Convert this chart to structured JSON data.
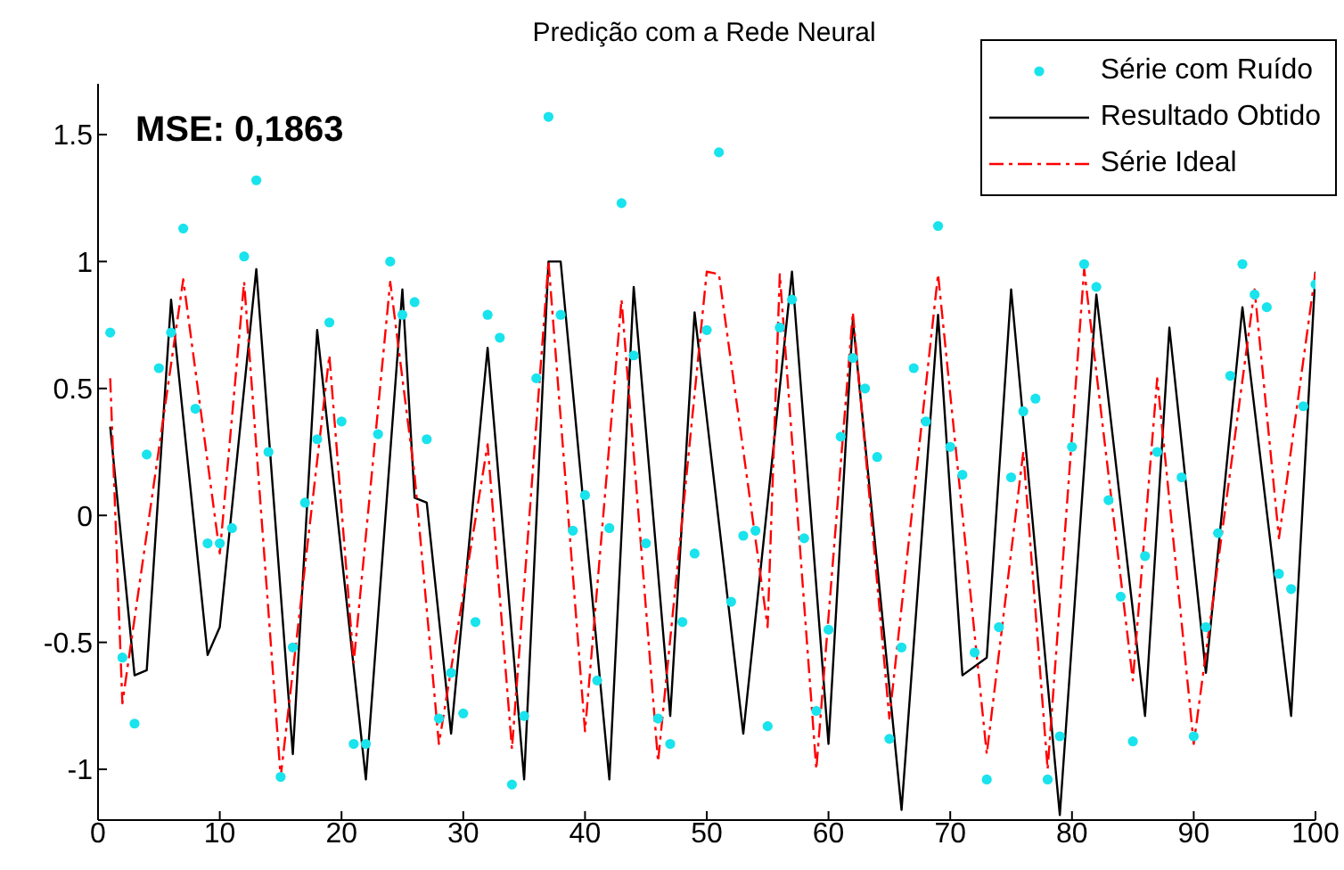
{
  "chart_data": {
    "type": "line",
    "title": "Predição com a Rede Neural",
    "annotations": [
      "MSE: 0,1863"
    ],
    "xlim": [
      0,
      100
    ],
    "xticks": [
      0,
      10,
      20,
      30,
      40,
      50,
      60,
      70,
      80,
      90,
      100
    ],
    "ylim": [
      -1.2,
      1.7
    ],
    "yticks": [
      -1,
      -0.5,
      0,
      0.5,
      1,
      1.5
    ],
    "grid": false,
    "legend": "top right",
    "series": [
      {
        "name": "Série com Ruído",
        "type": "scatter",
        "marker": "circle",
        "color": "#19e3ec",
        "x": [
          1,
          2,
          3,
          4,
          5,
          6,
          7,
          8,
          9,
          10,
          11,
          12,
          13,
          14,
          15,
          16,
          17,
          18,
          19,
          20,
          21,
          22,
          23,
          24,
          25,
          26,
          27,
          28,
          29,
          30,
          31,
          32,
          33,
          34,
          35,
          36,
          37,
          38,
          39,
          40,
          41,
          42,
          43,
          44,
          45,
          46,
          47,
          48,
          49,
          50,
          51,
          52,
          53,
          54,
          55,
          56,
          57,
          58,
          59,
          60,
          61,
          62,
          63,
          64,
          65,
          66,
          67,
          68,
          69,
          70,
          71,
          72,
          73,
          74,
          75,
          76,
          77,
          78,
          79,
          80,
          81,
          82,
          83,
          84,
          85,
          86,
          87,
          89,
          90,
          91,
          92,
          93,
          94,
          95,
          96,
          97,
          98,
          99,
          100
        ],
        "values": [
          0.72,
          -0.56,
          -0.82,
          0.24,
          0.58,
          0.72,
          1.13,
          0.42,
          -0.11,
          -0.11,
          -0.05,
          1.02,
          1.32,
          0.25,
          -1.03,
          -0.52,
          0.05,
          0.3,
          0.76,
          0.37,
          -0.9,
          -0.9,
          0.32,
          1.0,
          0.79,
          0.84,
          0.3,
          -0.8,
          -0.62,
          -0.78,
          -0.42,
          0.79,
          0.7,
          -1.06,
          -0.79,
          0.54,
          1.57,
          0.79,
          -0.06,
          0.08,
          -0.65,
          -0.05,
          1.23,
          0.63,
          -0.11,
          -0.8,
          -0.9,
          -0.42,
          -0.15,
          0.73,
          1.43,
          -0.34,
          -0.08,
          -0.06,
          -0.83,
          0.74,
          0.85,
          -0.09,
          -0.77,
          -0.45,
          0.31,
          0.62,
          0.5,
          0.23,
          -0.88,
          -0.52,
          0.58,
          0.37,
          1.14,
          0.27,
          0.16,
          -0.54,
          -1.04,
          -0.44,
          0.15,
          0.41,
          0.46,
          -1.04,
          -0.87,
          0.27,
          0.99,
          0.9,
          0.06,
          -0.32,
          -0.89,
          -0.16,
          0.25,
          0.15,
          -0.87,
          -0.44,
          -0.07,
          0.55,
          0.99,
          0.87,
          0.82,
          -0.23,
          -0.29,
          0.43,
          0.91
        ]
      },
      {
        "name": "Resultado Obtido",
        "marker": "none",
        "line_style": "solid",
        "color": "#000000",
        "x": [
          1,
          3,
          4,
          6,
          9,
          10,
          13,
          16,
          18,
          22,
          25,
          26,
          27,
          29,
          32,
          35,
          37,
          38,
          42,
          44,
          47,
          49,
          53,
          57,
          60,
          62,
          66,
          69,
          71,
          73,
          75,
          79,
          82,
          86,
          88,
          91,
          94,
          98,
          100
        ],
        "values": [
          0.35,
          -0.63,
          -0.61,
          0.85,
          -0.55,
          -0.44,
          0.97,
          -0.94,
          0.73,
          -1.04,
          0.89,
          0.07,
          0.05,
          -0.86,
          0.66,
          -1.04,
          1.0,
          1.0,
          -1.04,
          0.9,
          -0.79,
          0.8,
          -0.86,
          0.96,
          -0.9,
          0.77,
          -1.16,
          0.79,
          -0.63,
          -0.56,
          0.89,
          -1.18,
          0.87,
          -0.79,
          0.74,
          -0.62,
          0.82,
          -0.79,
          0.96
        ]
      },
      {
        "name": "Série Ideal",
        "marker": "none",
        "line_style": "dashed",
        "color": "#ff0000",
        "x": [
          1,
          2,
          7,
          10,
          12,
          15,
          19,
          21,
          24,
          26,
          28,
          32,
          34,
          37,
          40,
          43,
          46,
          50,
          51,
          55,
          56,
          59,
          62,
          65,
          69,
          73,
          76,
          78,
          81,
          85,
          87,
          90,
          95,
          97,
          100
        ],
        "values": [
          0.54,
          -0.74,
          0.93,
          -0.15,
          0.92,
          -1.03,
          0.63,
          -0.58,
          0.92,
          0.16,
          -0.9,
          0.28,
          -0.92,
          1.0,
          -0.85,
          0.85,
          -0.97,
          0.96,
          0.95,
          -0.44,
          0.95,
          -1.0,
          0.8,
          -0.8,
          0.95,
          -0.94,
          0.25,
          -1.0,
          0.97,
          -0.65,
          0.54,
          -0.9,
          0.89,
          -0.09,
          0.96
        ]
      }
    ]
  }
}
